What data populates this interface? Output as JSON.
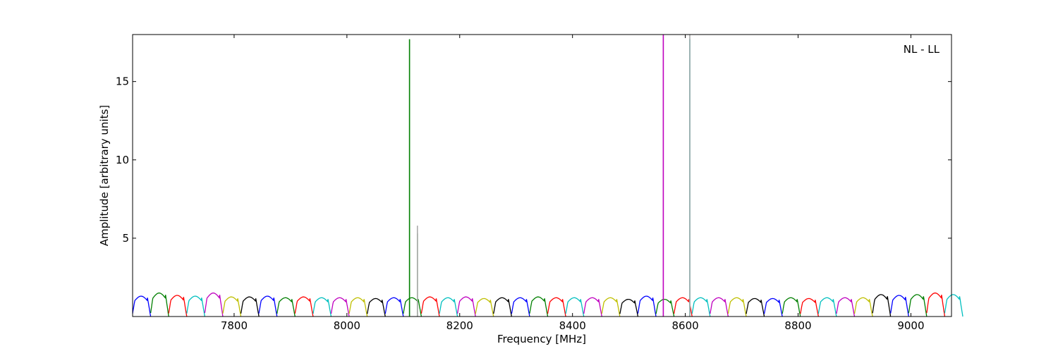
{
  "chart_data": {
    "type": "line",
    "title": "",
    "annotation": "NL - LL",
    "xlabel": "Frequency [MHz]",
    "ylabel": "Amplitude [arbitrary units]",
    "xlim": [
      7620,
      9072
    ],
    "ylim": [
      0,
      18
    ],
    "xticks": [
      7800,
      8000,
      8200,
      8400,
      8600,
      8800,
      9000
    ],
    "yticks": [
      5,
      10,
      15
    ],
    "grid": false,
    "legend": "none",
    "channel": {
      "start": 7620,
      "width": 32,
      "count": 46,
      "peak_values": [
        1.3,
        1.5,
        1.35,
        1.3,
        1.5,
        1.25,
        1.25,
        1.3,
        1.2,
        1.25,
        1.2,
        1.2,
        1.2,
        1.15,
        1.2,
        1.2,
        1.25,
        1.2,
        1.25,
        1.15,
        1.2,
        1.2,
        1.25,
        1.2,
        1.2,
        1.2,
        1.2,
        1.1,
        1.3,
        1.1,
        1.2,
        1.2,
        1.2,
        1.2,
        1.15,
        1.15,
        1.2,
        1.15,
        1.2,
        1.2,
        1.2,
        1.4,
        1.35,
        1.4,
        1.5,
        1.4
      ],
      "colors": [
        "#0000ff",
        "#007f00",
        "#ff0000",
        "#00bfbf",
        "#bf00bf",
        "#bfbf00",
        "#000000"
      ]
    },
    "spikes": [
      {
        "x": 8111,
        "y": 17.7,
        "color": "#007f00"
      },
      {
        "x": 8125,
        "y": 5.3,
        "color": "#007f00"
      },
      {
        "x": 8125,
        "y": 5.8,
        "color": "#aaaaaa"
      },
      {
        "x": 8561,
        "y": 18,
        "color": "#bf00bf"
      },
      {
        "x": 8608,
        "y": 17.7,
        "color": "#00bfbf"
      },
      {
        "x": 8608,
        "y": 18,
        "color": "#aaaaaa"
      }
    ]
  }
}
